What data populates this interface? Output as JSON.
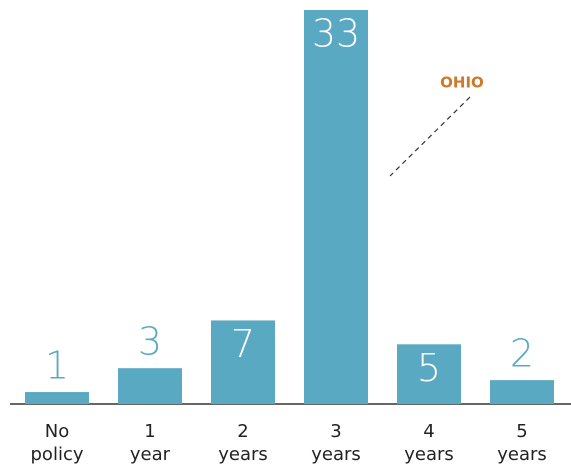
{
  "chart_data": {
    "type": "bar",
    "categories": [
      "No policy",
      "1 year",
      "2 years",
      "3 years",
      "4 years",
      "5 years"
    ],
    "values": [
      1,
      3,
      7,
      33,
      5,
      2
    ],
    "color": "#5aa9c3",
    "annotation": {
      "text": "OHIO",
      "color": "#d0782a"
    }
  }
}
